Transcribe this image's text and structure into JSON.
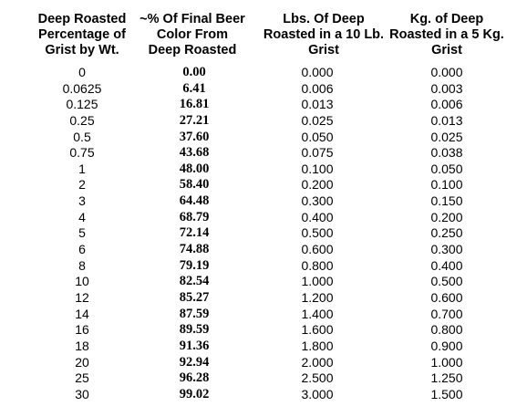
{
  "table": {
    "headers": [
      "Deep Roasted\nPercentage of\nGrist by Wt.",
      "~% Of Final Beer\nColor From\nDeep Roasted",
      "Lbs. Of Deep\nRoasted in a 10 Lb.\nGrist",
      "Kg. of Deep\nRoasted in a 5 Kg.\nGrist"
    ],
    "rows": [
      [
        "0",
        "0.00",
        "0.000",
        "0.000"
      ],
      [
        "0.0625",
        "6.41",
        "0.006",
        "0.003"
      ],
      [
        "0.125",
        "16.81",
        "0.013",
        "0.006"
      ],
      [
        "0.25",
        "27.21",
        "0.025",
        "0.013"
      ],
      [
        "0.5",
        "37.60",
        "0.050",
        "0.025"
      ],
      [
        "0.75",
        "43.68",
        "0.075",
        "0.038"
      ],
      [
        "1",
        "48.00",
        "0.100",
        "0.050"
      ],
      [
        "2",
        "58.40",
        "0.200",
        "0.100"
      ],
      [
        "3",
        "64.48",
        "0.300",
        "0.150"
      ],
      [
        "4",
        "68.79",
        "0.400",
        "0.200"
      ],
      [
        "5",
        "72.14",
        "0.500",
        "0.250"
      ],
      [
        "6",
        "74.88",
        "0.600",
        "0.300"
      ],
      [
        "8",
        "79.19",
        "0.800",
        "0.400"
      ],
      [
        "10",
        "82.54",
        "1.000",
        "0.500"
      ],
      [
        "12",
        "85.27",
        "1.200",
        "0.600"
      ],
      [
        "14",
        "87.59",
        "1.400",
        "0.700"
      ],
      [
        "16",
        "89.59",
        "1.600",
        "0.800"
      ],
      [
        "18",
        "91.36",
        "1.800",
        "0.900"
      ],
      [
        "20",
        "92.94",
        "2.000",
        "1.000"
      ],
      [
        "25",
        "96.28",
        "2.500",
        "1.250"
      ],
      [
        "30",
        "99.02",
        "3.000",
        "1.500"
      ]
    ]
  }
}
